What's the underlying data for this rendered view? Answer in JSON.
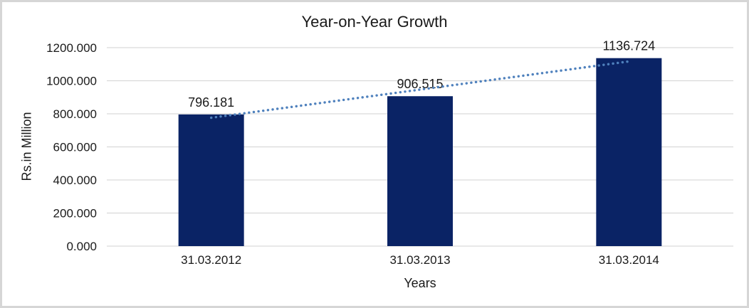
{
  "chart_data": {
    "type": "bar",
    "title": "Year-on-Year Growth",
    "xlabel": "Years",
    "ylabel": "Rs.in Million",
    "categories": [
      "31.03.2012",
      "31.03.2013",
      "31.03.2014"
    ],
    "values": [
      796.181,
      906.515,
      1136.724
    ],
    "value_labels": [
      "796.181",
      "906.515",
      "1136.724"
    ],
    "ytick_labels": [
      "0.000",
      "200.000",
      "400.000",
      "600.000",
      "800.000",
      "1000.000",
      "1200.000"
    ],
    "ylim": [
      0,
      1200
    ],
    "grid": true,
    "legend": "none",
    "trendline": {
      "type": "linear",
      "style": "dotted"
    },
    "colors": {
      "bar": "#0a2365",
      "trendline": "#4f81bd",
      "gridline": "#d9d9d9",
      "text": "#1a1a1a",
      "frame_border": "#d6d6d6",
      "background": "#ffffff"
    }
  }
}
